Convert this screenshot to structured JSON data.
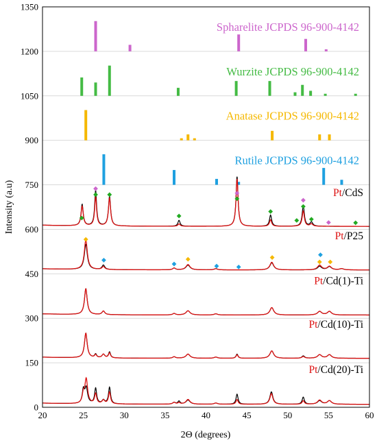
{
  "chart_data": {
    "type": "line",
    "title": "",
    "xlabel": "2Θ (degrees)",
    "ylabel": "Intensity (a.u)",
    "xlim": [
      20,
      60
    ],
    "ylim": [
      0,
      1350
    ],
    "xticks": [
      "20",
      "25",
      "30",
      "35",
      "40",
      "45",
      "50",
      "55",
      "60"
    ],
    "yticks": [
      "0",
      "150",
      "300",
      "450",
      "600",
      "750",
      "900",
      "1050",
      "1200",
      "1350"
    ],
    "grid": "horizontal",
    "colors": {
      "sphalerite": "#cc66cc",
      "wurzite": "#44bb44",
      "anatase": "#f5b800",
      "rutile": "#1ea0e0",
      "diamond_sphalerite": "#cc66cc",
      "diamond_wurzite": "#22aa22",
      "diamond_anatase": "#f5b800",
      "diamond_rutile": "#1ea0e0",
      "measured": "#000000",
      "fit": "#dd1111",
      "pt_text": "#dd1111"
    },
    "reference_patterns": [
      {
        "name": "Spharelite JCPDS 96-900-4142",
        "color_key": "sphalerite",
        "baseline": 1200,
        "sticks": [
          [
            26.5,
            1302
          ],
          [
            30.7,
            1222
          ],
          [
            44.0,
            1257
          ],
          [
            52.2,
            1242
          ],
          [
            54.7,
            1207
          ]
        ]
      },
      {
        "name": "Wurzite JCPDS 96-900-4142",
        "color_key": "wurzite",
        "baseline": 1050,
        "sticks": [
          [
            24.8,
            1112
          ],
          [
            26.5,
            1095
          ],
          [
            28.2,
            1152
          ],
          [
            36.6,
            1077
          ],
          [
            43.7,
            1100
          ],
          [
            47.8,
            1100
          ],
          [
            50.9,
            1062
          ],
          [
            51.8,
            1087
          ],
          [
            52.8,
            1067
          ],
          [
            54.6,
            1057
          ],
          [
            58.3,
            1057
          ]
        ]
      },
      {
        "name": "Anatase JCPDS 96-900-4142",
        "color_key": "anatase",
        "baseline": 900,
        "sticks": [
          [
            25.3,
            1002
          ],
          [
            37.0,
            907
          ],
          [
            37.8,
            920
          ],
          [
            38.6,
            907
          ],
          [
            48.1,
            932
          ],
          [
            53.9,
            920
          ],
          [
            55.1,
            920
          ]
        ]
      },
      {
        "name": "Rutile JCPDS 96-900-4142",
        "color_key": "rutile",
        "baseline": 750,
        "sticks": [
          [
            27.5,
            853
          ],
          [
            36.1,
            800
          ],
          [
            41.3,
            770
          ],
          [
            44.0,
            760
          ],
          [
            54.4,
            807
          ],
          [
            56.6,
            767
          ]
        ]
      }
    ],
    "samples": [
      {
        "pt": "Pt",
        "name": "/CdS",
        "baseline": 610,
        "label_value": 712,
        "peaks": [
          {
            "x": 24.85,
            "h": 72,
            "w": 0.16,
            "hr": 66
          },
          {
            "x": 26.5,
            "h": 120,
            "w": 0.14,
            "hr": 98
          },
          {
            "x": 28.2,
            "h": 100,
            "w": 0.16,
            "hr": 94
          },
          {
            "x": 36.7,
            "h": 20,
            "w": 0.16,
            "hr": 8
          },
          {
            "x": 43.8,
            "h": 168,
            "w": 0.15,
            "hr": 160
          },
          {
            "x": 47.9,
            "h": 38,
            "w": 0.16,
            "hr": 22
          },
          {
            "x": 51.9,
            "h": 70,
            "w": 0.16,
            "hr": 52
          },
          {
            "x": 52.9,
            "h": 14,
            "w": 0.2,
            "hr": 8
          }
        ],
        "markers": [
          {
            "x": 24.8,
            "y": 638,
            "phase": "wurzite"
          },
          {
            "x": 26.5,
            "y": 737,
            "phase": "sphalerite"
          },
          {
            "x": 26.5,
            "y": 717,
            "phase": "wurzite"
          },
          {
            "x": 28.2,
            "y": 717,
            "phase": "wurzite"
          },
          {
            "x": 36.7,
            "y": 645,
            "phase": "wurzite"
          },
          {
            "x": 43.8,
            "y": 722,
            "phase": "sphalerite"
          },
          {
            "x": 43.8,
            "y": 703,
            "phase": "wurzite"
          },
          {
            "x": 47.9,
            "y": 660,
            "phase": "wurzite"
          },
          {
            "x": 51.9,
            "y": 698,
            "phase": "sphalerite"
          },
          {
            "x": 51.9,
            "y": 677,
            "phase": "wurzite"
          },
          {
            "x": 51.1,
            "y": 630,
            "phase": "wurzite"
          },
          {
            "x": 52.9,
            "y": 634,
            "phase": "wurzite"
          },
          {
            "x": 55.0,
            "y": 623,
            "phase": "sphalerite"
          },
          {
            "x": 58.3,
            "y": 622,
            "phase": "wurzite"
          }
        ]
      },
      {
        "pt": "Pt",
        "name": "/P25",
        "baseline": 463,
        "label_value": 566,
        "peaks": [
          {
            "x": 25.3,
            "h": 85,
            "w": 0.22,
            "hr": 100
          },
          {
            "x": 27.45,
            "h": 15,
            "w": 0.2,
            "hr": 10
          },
          {
            "x": 36.1,
            "h": 6,
            "w": 0.2,
            "hr": 6
          },
          {
            "x": 37.8,
            "h": 16,
            "w": 0.3,
            "hr": 18
          },
          {
            "x": 41.2,
            "h": 4,
            "w": 0.25,
            "hr": 4
          },
          {
            "x": 48.05,
            "h": 24,
            "w": 0.28,
            "hr": 26
          },
          {
            "x": 53.9,
            "h": 12,
            "w": 0.3,
            "hr": 16
          },
          {
            "x": 55.1,
            "h": 11,
            "w": 0.3,
            "hr": 12
          },
          {
            "x": 56.6,
            "h": 4,
            "w": 0.3,
            "hr": 4
          }
        ],
        "markers": [
          {
            "x": 25.3,
            "y": 566,
            "phase": "anatase"
          },
          {
            "x": 27.5,
            "y": 496,
            "phase": "rutile"
          },
          {
            "x": 36.1,
            "y": 483,
            "phase": "rutile"
          },
          {
            "x": 37.8,
            "y": 499,
            "phase": "anatase"
          },
          {
            "x": 41.3,
            "y": 476,
            "phase": "rutile"
          },
          {
            "x": 44.0,
            "y": 473,
            "phase": "rutile"
          },
          {
            "x": 48.1,
            "y": 505,
            "phase": "anatase"
          },
          {
            "x": 54.0,
            "y": 514,
            "phase": "rutile"
          },
          {
            "x": 53.9,
            "y": 490,
            "phase": "anatase"
          },
          {
            "x": 55.2,
            "y": 490,
            "phase": "anatase"
          }
        ]
      },
      {
        "pt": "Pt",
        "name": "/Cd(1)-Ti",
        "baseline": 311,
        "label_value": 415,
        "peaks": [
          {
            "x": 25.3,
            "h": 87,
            "w": 0.2,
            "hr": 87
          },
          {
            "x": 27.45,
            "h": 12,
            "w": 0.2,
            "hr": 12
          },
          {
            "x": 36.1,
            "h": 5,
            "w": 0.2,
            "hr": 5
          },
          {
            "x": 37.8,
            "h": 14,
            "w": 0.3,
            "hr": 14
          },
          {
            "x": 41.2,
            "h": 4,
            "w": 0.25,
            "hr": 4
          },
          {
            "x": 48.05,
            "h": 25,
            "w": 0.28,
            "hr": 25
          },
          {
            "x": 53.9,
            "h": 12,
            "w": 0.3,
            "hr": 12
          },
          {
            "x": 55.1,
            "h": 12,
            "w": 0.3,
            "hr": 12
          }
        ],
        "markers": []
      },
      {
        "pt": "Pt",
        "name": "/Cd(10)-Ti",
        "baseline": 165,
        "label_value": 268,
        "peaks": [
          {
            "x": 25.3,
            "h": 83,
            "w": 0.2,
            "hr": 83
          },
          {
            "x": 26.5,
            "h": 12,
            "w": 0.15,
            "hr": 10
          },
          {
            "x": 27.45,
            "h": 12,
            "w": 0.2,
            "hr": 12
          },
          {
            "x": 28.2,
            "h": 20,
            "w": 0.15,
            "hr": 17
          },
          {
            "x": 36.1,
            "h": 5,
            "w": 0.2,
            "hr": 5
          },
          {
            "x": 37.8,
            "h": 14,
            "w": 0.3,
            "hr": 14
          },
          {
            "x": 41.2,
            "h": 4,
            "w": 0.25,
            "hr": 4
          },
          {
            "x": 43.8,
            "h": 14,
            "w": 0.15,
            "hr": 12
          },
          {
            "x": 48.05,
            "h": 25,
            "w": 0.28,
            "hr": 25
          },
          {
            "x": 51.9,
            "h": 8,
            "w": 0.2,
            "hr": 6
          },
          {
            "x": 53.9,
            "h": 12,
            "w": 0.3,
            "hr": 12
          },
          {
            "x": 55.1,
            "h": 12,
            "w": 0.3,
            "hr": 12
          }
        ],
        "markers": []
      },
      {
        "pt": "Pt",
        "name": "/Cd(20)-Ti",
        "baseline": 10,
        "label_value": 116,
        "peaks": [
          {
            "x": 25.0,
            "h": 44,
            "w": 0.16,
            "hr": 30
          },
          {
            "x": 25.35,
            "h": 52,
            "w": 0.2,
            "hr": 82
          },
          {
            "x": 26.5,
            "h": 52,
            "w": 0.15,
            "hr": 34
          },
          {
            "x": 27.45,
            "h": 12,
            "w": 0.2,
            "hr": 12
          },
          {
            "x": 28.2,
            "h": 56,
            "w": 0.15,
            "hr": 40
          },
          {
            "x": 36.1,
            "h": 6,
            "w": 0.2,
            "hr": 6
          },
          {
            "x": 36.7,
            "h": 10,
            "w": 0.16,
            "hr": 5
          },
          {
            "x": 37.8,
            "h": 14,
            "w": 0.3,
            "hr": 16
          },
          {
            "x": 41.2,
            "h": 4,
            "w": 0.25,
            "hr": 4
          },
          {
            "x": 43.8,
            "h": 34,
            "w": 0.15,
            "hr": 16
          },
          {
            "x": 48.0,
            "h": 42,
            "w": 0.22,
            "hr": 36
          },
          {
            "x": 51.9,
            "h": 24,
            "w": 0.16,
            "hr": 12
          },
          {
            "x": 53.9,
            "h": 12,
            "w": 0.3,
            "hr": 14
          },
          {
            "x": 55.1,
            "h": 12,
            "w": 0.3,
            "hr": 12
          }
        ],
        "markers": []
      }
    ]
  }
}
